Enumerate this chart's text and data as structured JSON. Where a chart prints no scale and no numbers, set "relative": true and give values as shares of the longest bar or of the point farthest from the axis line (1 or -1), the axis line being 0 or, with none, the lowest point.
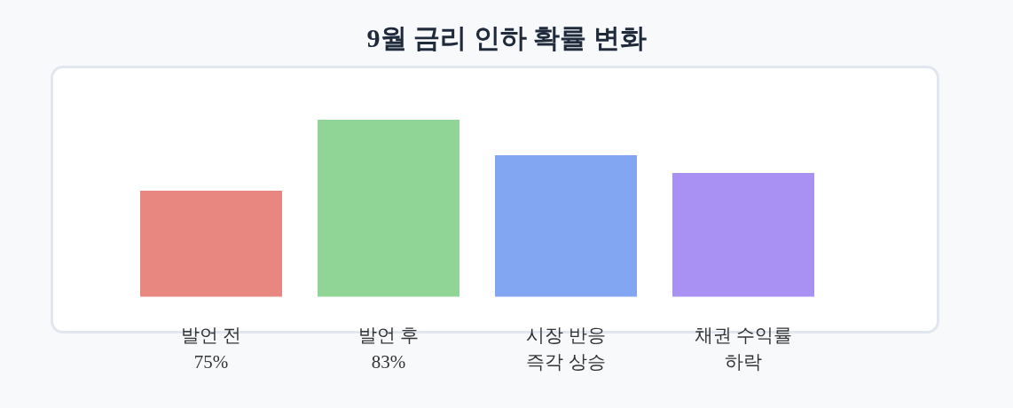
{
  "chart_data": {
    "type": "bar",
    "title": "9월 금리 인하 확률 변화",
    "categories": [
      "발언 전\n75%",
      "발언 후\n83%",
      "시장 반응\n즉각 상승",
      "채권 수익률\n하락"
    ],
    "values": [
      0.6,
      1,
      0.8,
      0.7
    ],
    "colors": [
      "#e8877f",
      "#90d595",
      "#82a6f1",
      "#a991f3"
    ],
    "relative": true,
    "grid": false,
    "legend": false
  }
}
